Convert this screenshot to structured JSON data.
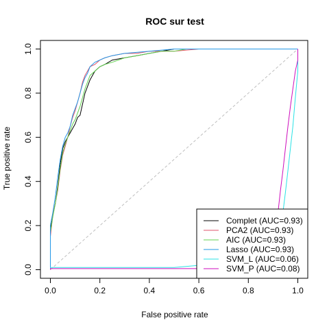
{
  "chart_data": {
    "type": "line",
    "title": "ROC sur test",
    "xlabel": "False positive rate",
    "ylabel": "True positive rate",
    "xlim": [
      0,
      1
    ],
    "ylim": [
      0,
      1
    ],
    "x_ticks": [
      "0.0",
      "0.2",
      "0.4",
      "0.6",
      "0.8",
      "1.0"
    ],
    "y_ticks": [
      "0.0",
      "0.2",
      "0.4",
      "0.6",
      "0.8",
      "1.0"
    ],
    "grid": false,
    "legend_position": "bottom-right",
    "diagonal_reference": {
      "color": "#bebebe",
      "style": "dashed"
    },
    "series": [
      {
        "name": "Complet (AUC=0.93)",
        "color": "#000000",
        "points": [
          [
            0,
            0
          ],
          [
            0,
            0.18
          ],
          [
            0.01,
            0.25
          ],
          [
            0.02,
            0.3
          ],
          [
            0.03,
            0.38
          ],
          [
            0.04,
            0.48
          ],
          [
            0.05,
            0.55
          ],
          [
            0.06,
            0.58
          ],
          [
            0.07,
            0.6
          ],
          [
            0.08,
            0.62
          ],
          [
            0.09,
            0.64
          ],
          [
            0.1,
            0.66
          ],
          [
            0.11,
            0.69
          ],
          [
            0.12,
            0.7
          ],
          [
            0.13,
            0.75
          ],
          [
            0.14,
            0.8
          ],
          [
            0.15,
            0.83
          ],
          [
            0.16,
            0.86
          ],
          [
            0.17,
            0.88
          ],
          [
            0.18,
            0.9
          ],
          [
            0.2,
            0.92
          ],
          [
            0.22,
            0.93
          ],
          [
            0.25,
            0.95
          ],
          [
            0.3,
            0.96
          ],
          [
            0.35,
            0.97
          ],
          [
            0.4,
            0.98
          ],
          [
            0.45,
            0.99
          ],
          [
            0.5,
            1.0
          ],
          [
            1.0,
            1.0
          ]
        ]
      },
      {
        "name": "PCA2 (AUC=0.93)",
        "color": "#df536b",
        "points": [
          [
            0,
            0
          ],
          [
            0,
            0.15
          ],
          [
            0.01,
            0.25
          ],
          [
            0.02,
            0.3
          ],
          [
            0.03,
            0.36
          ],
          [
            0.04,
            0.45
          ],
          [
            0.05,
            0.52
          ],
          [
            0.06,
            0.56
          ],
          [
            0.07,
            0.6
          ],
          [
            0.08,
            0.65
          ],
          [
            0.09,
            0.69
          ],
          [
            0.1,
            0.72
          ],
          [
            0.11,
            0.76
          ],
          [
            0.12,
            0.8
          ],
          [
            0.13,
            0.85
          ],
          [
            0.14,
            0.88
          ],
          [
            0.15,
            0.9
          ],
          [
            0.16,
            0.92
          ],
          [
            0.18,
            0.93
          ],
          [
            0.2,
            0.95
          ],
          [
            0.22,
            0.96
          ],
          [
            0.25,
            0.97
          ],
          [
            0.3,
            0.98
          ],
          [
            0.35,
            0.98
          ],
          [
            0.4,
            0.99
          ],
          [
            0.5,
            0.99
          ],
          [
            0.6,
            1.0
          ],
          [
            1.0,
            1.0
          ]
        ]
      },
      {
        "name": "AIC (AUC=0.93)",
        "color": "#61d04f",
        "points": [
          [
            0,
            0
          ],
          [
            0,
            0.17
          ],
          [
            0.01,
            0.24
          ],
          [
            0.02,
            0.3
          ],
          [
            0.03,
            0.37
          ],
          [
            0.04,
            0.46
          ],
          [
            0.05,
            0.53
          ],
          [
            0.06,
            0.57
          ],
          [
            0.07,
            0.6
          ],
          [
            0.08,
            0.63
          ],
          [
            0.09,
            0.66
          ],
          [
            0.1,
            0.68
          ],
          [
            0.11,
            0.71
          ],
          [
            0.12,
            0.74
          ],
          [
            0.13,
            0.78
          ],
          [
            0.14,
            0.82
          ],
          [
            0.15,
            0.85
          ],
          [
            0.16,
            0.88
          ],
          [
            0.18,
            0.9
          ],
          [
            0.2,
            0.92
          ],
          [
            0.22,
            0.93
          ],
          [
            0.25,
            0.94
          ],
          [
            0.3,
            0.96
          ],
          [
            0.35,
            0.97
          ],
          [
            0.4,
            0.98
          ],
          [
            0.45,
            0.99
          ],
          [
            0.5,
            0.99
          ],
          [
            0.55,
            1.0
          ],
          [
            1.0,
            1.0
          ]
        ]
      },
      {
        "name": "Lasso (AUC=0.93)",
        "color": "#2297e6",
        "points": [
          [
            0,
            0
          ],
          [
            0,
            0.2
          ],
          [
            0.01,
            0.26
          ],
          [
            0.02,
            0.33
          ],
          [
            0.03,
            0.42
          ],
          [
            0.04,
            0.5
          ],
          [
            0.05,
            0.56
          ],
          [
            0.06,
            0.6
          ],
          [
            0.07,
            0.62
          ],
          [
            0.08,
            0.65
          ],
          [
            0.09,
            0.7
          ],
          [
            0.1,
            0.73
          ],
          [
            0.11,
            0.76
          ],
          [
            0.12,
            0.8
          ],
          [
            0.13,
            0.84
          ],
          [
            0.14,
            0.87
          ],
          [
            0.15,
            0.89
          ],
          [
            0.16,
            0.92
          ],
          [
            0.18,
            0.94
          ],
          [
            0.2,
            0.95
          ],
          [
            0.22,
            0.96
          ],
          [
            0.25,
            0.97
          ],
          [
            0.3,
            0.98
          ],
          [
            0.4,
            0.99
          ],
          [
            0.5,
            1.0
          ],
          [
            1.0,
            1.0
          ]
        ]
      },
      {
        "name": "SVM_L (AUC=0.06)",
        "color": "#28e2e5",
        "points": [
          [
            0,
            0
          ],
          [
            0,
            0.01
          ],
          [
            0.5,
            0.01
          ],
          [
            0.6,
            0.02
          ],
          [
            0.85,
            0.02
          ],
          [
            0.86,
            0.04
          ],
          [
            0.88,
            0.06
          ],
          [
            0.9,
            0.08
          ],
          [
            0.91,
            0.1
          ],
          [
            0.92,
            0.15
          ],
          [
            0.93,
            0.2
          ],
          [
            0.94,
            0.26
          ],
          [
            0.95,
            0.35
          ],
          [
            0.96,
            0.45
          ],
          [
            0.97,
            0.55
          ],
          [
            0.98,
            0.65
          ],
          [
            0.99,
            0.78
          ],
          [
            1.0,
            0.9
          ],
          [
            1.0,
            1.0
          ]
        ]
      },
      {
        "name": "SVM_P (AUC=0.08)",
        "color": "#cd0bbc",
        "points": [
          [
            0,
            0
          ],
          [
            0,
            0.005
          ],
          [
            0.8,
            0.005
          ],
          [
            0.86,
            0.02
          ],
          [
            0.88,
            0.05
          ],
          [
            0.9,
            0.1
          ],
          [
            0.91,
            0.18
          ],
          [
            0.92,
            0.26
          ],
          [
            0.93,
            0.36
          ],
          [
            0.94,
            0.45
          ],
          [
            0.95,
            0.55
          ],
          [
            0.96,
            0.65
          ],
          [
            0.97,
            0.74
          ],
          [
            0.98,
            0.82
          ],
          [
            0.99,
            0.9
          ],
          [
            1.0,
            0.95
          ],
          [
            1.0,
            1.0
          ]
        ]
      }
    ]
  }
}
